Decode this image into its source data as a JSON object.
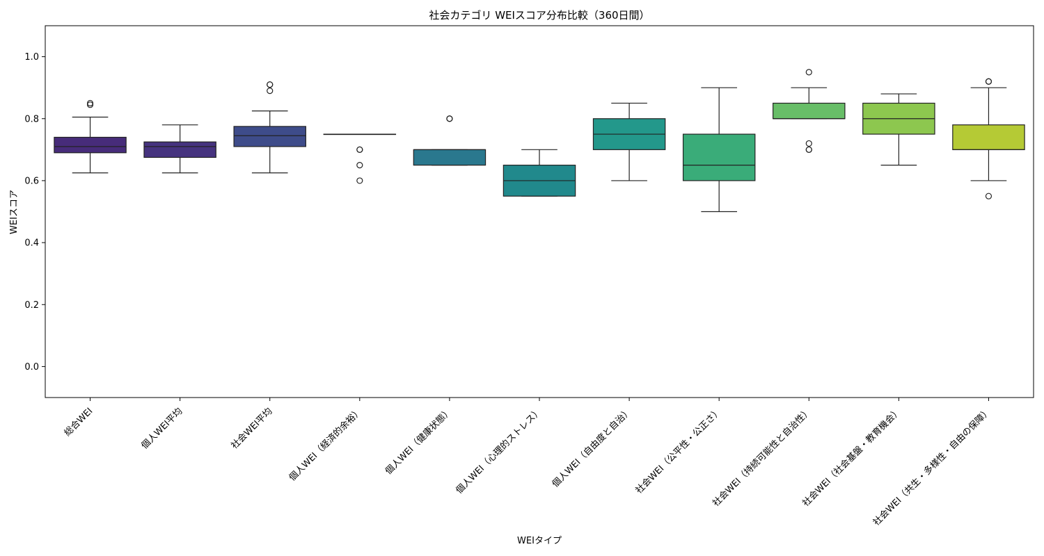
{
  "chart_data": {
    "type": "box",
    "title": "社会カテゴリ WEIスコア分布比較（360日間）",
    "xlabel": "WEIタイプ",
    "ylabel": "WEIスコア",
    "ylim": [
      -0.1,
      1.1
    ],
    "yticks": [
      0.0,
      0.2,
      0.4,
      0.6,
      0.8,
      1.0
    ],
    "ytick_labels": [
      "0.0",
      "0.2",
      "0.4",
      "0.6",
      "0.8",
      "1.0"
    ],
    "grid": false,
    "categories": [
      "総合WEI",
      "個人WEI平均",
      "社会WEI平均",
      "個人WEI（経済的余裕）",
      "個人WEI（健康状態）",
      "個人WEI（心理的ストレス）",
      "個人WEI（自由度と自治）",
      "社会WEI（公平性・公正さ）",
      "社会WEI（持続可能性と自治性）",
      "社会WEI（社会基盤・教育機会）",
      "社会WEI（共生・多様性・自由の保障）"
    ],
    "boxes": [
      {
        "whislo": 0.625,
        "q1": 0.69,
        "med": 0.71,
        "q3": 0.74,
        "whishi": 0.805,
        "fliers": [
          0.845,
          0.85
        ],
        "color": "#472c7a"
      },
      {
        "whislo": 0.625,
        "q1": 0.675,
        "med": 0.71,
        "q3": 0.725,
        "whishi": 0.78,
        "fliers": [],
        "color": "#46337f"
      },
      {
        "whislo": 0.625,
        "q1": 0.71,
        "med": 0.745,
        "q3": 0.775,
        "whishi": 0.825,
        "fliers": [
          0.89,
          0.91,
          0.91
        ],
        "color": "#3e4c8a"
      },
      {
        "whislo": 0.75,
        "q1": 0.75,
        "med": 0.75,
        "q3": 0.75,
        "whishi": 0.75,
        "fliers": [
          0.6,
          0.65,
          0.7,
          0.7
        ],
        "color": "#31688e"
      },
      {
        "whislo": 0.65,
        "q1": 0.65,
        "med": 0.7,
        "q3": 0.7,
        "whishi": 0.7,
        "fliers": [
          0.8,
          0.8
        ],
        "color": "#2a788e"
      },
      {
        "whislo": 0.55,
        "q1": 0.55,
        "med": 0.6,
        "q3": 0.65,
        "whishi": 0.7,
        "fliers": [],
        "color": "#21898c"
      },
      {
        "whislo": 0.6,
        "q1": 0.7,
        "med": 0.75,
        "q3": 0.8,
        "whishi": 0.85,
        "fliers": [],
        "color": "#23988b"
      },
      {
        "whislo": 0.5,
        "q1": 0.6,
        "med": 0.65,
        "q3": 0.75,
        "whishi": 0.9,
        "fliers": [],
        "color": "#3aac79"
      },
      {
        "whislo": 0.8,
        "q1": 0.8,
        "med": 0.8,
        "q3": 0.85,
        "whishi": 0.9,
        "fliers": [
          0.7,
          0.7,
          0.72,
          0.95
        ],
        "color": "#68be68"
      },
      {
        "whislo": 0.65,
        "q1": 0.75,
        "med": 0.8,
        "q3": 0.85,
        "whishi": 0.88,
        "fliers": [],
        "color": "#8dc74f"
      },
      {
        "whislo": 0.6,
        "q1": 0.7,
        "med": 0.7,
        "q3": 0.78,
        "whishi": 0.9,
        "fliers": [
          0.55,
          0.92,
          0.92
        ],
        "color": "#b5ca35"
      }
    ]
  }
}
